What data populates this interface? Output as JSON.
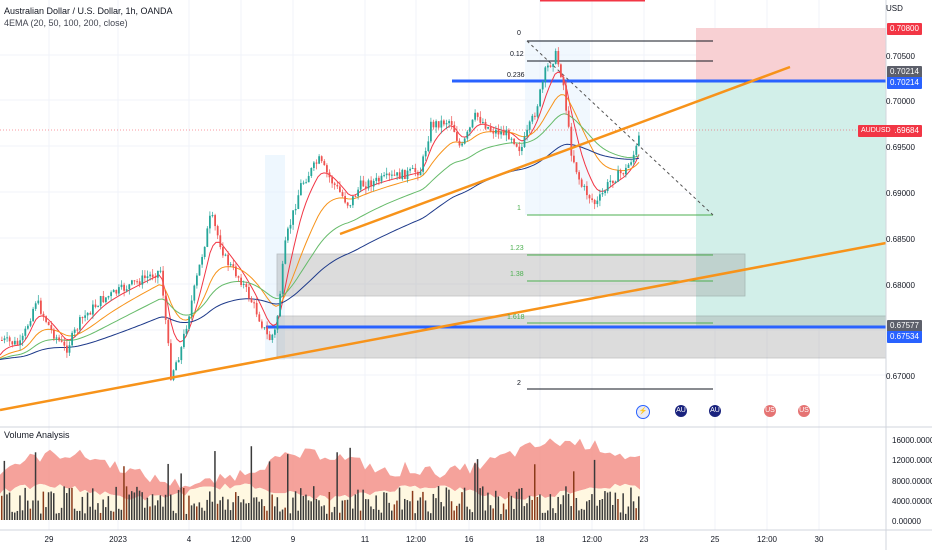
{
  "header": {
    "title": "Australian Dollar / U.S. Dollar, 1h, OANDA",
    "indicator": "4EMA (20, 50, 100, 200, close)"
  },
  "price_axis": {
    "currency": "USD",
    "ticks": [
      "0.70500",
      "0.70000",
      "0.69500",
      "0.69000",
      "0.68500",
      "0.68000",
      "0.67000"
    ],
    "tags": [
      {
        "label": "0.70800",
        "color": "#f23645"
      },
      {
        "label": "0.70214",
        "color": "#5d606b"
      },
      {
        "label": "0.70214",
        "color": "#2962ff"
      },
      {
        "label": "0.69684",
        "color": "#f23645"
      },
      {
        "label": "0.67577",
        "color": "#5d606b"
      },
      {
        "label": "0.67534",
        "color": "#2962ff"
      }
    ],
    "symbol_tag": "AUDUSD"
  },
  "time_axis": {
    "labels": [
      "29",
      "2023",
      "4",
      "12:00",
      "9",
      "11",
      "12:00",
      "16",
      "18",
      "12:00",
      "23",
      "25",
      "12:00",
      "30"
    ]
  },
  "fib_levels": [
    "0",
    "0.12",
    "0.236",
    "1",
    "1.23",
    "1.38",
    "1.618",
    "2"
  ],
  "events": [
    {
      "icon": "lightning-icon",
      "glyph": "⚡"
    },
    {
      "icon": "au-flag-icon",
      "glyph": "AU"
    },
    {
      "icon": "au-flag-icon",
      "glyph": "AU"
    },
    {
      "icon": "us-flag-icon",
      "glyph": "US"
    },
    {
      "icon": "us-flag-icon",
      "glyph": "US"
    }
  ],
  "volume_panel": {
    "title": "Volume Analysis",
    "ticks": [
      "16000.000000",
      "12000.00000",
      "8000.00000",
      "4000.00000",
      "0.00000"
    ]
  },
  "colors": {
    "bull": "#26a69a",
    "bear": "#ef5350",
    "trendline": "#f7931a",
    "level": "#2962ff"
  }
}
